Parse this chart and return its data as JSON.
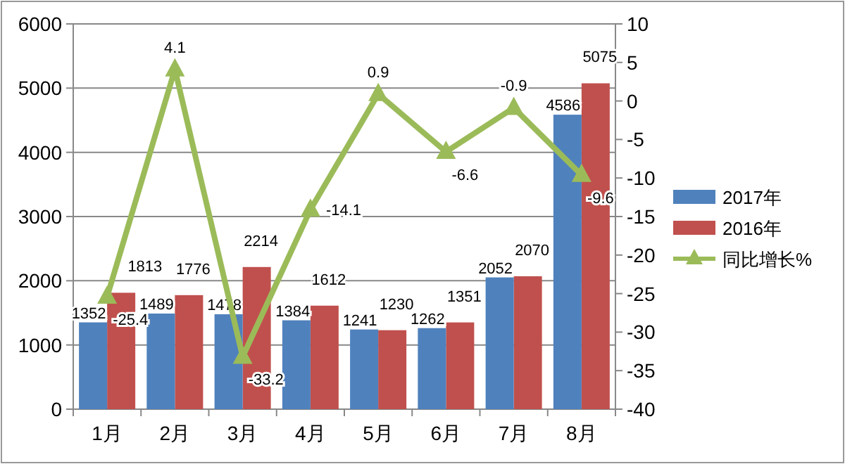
{
  "chart_data": {
    "type": "bar",
    "categories": [
      "1月",
      "2月",
      "3月",
      "4月",
      "5月",
      "6月",
      "7月",
      "8月"
    ],
    "series": [
      {
        "name": "2017年",
        "type": "bar",
        "color": "#4f81bd",
        "values": [
          1352,
          1489,
          1478,
          1384,
          1241,
          1262,
          2052,
          4586
        ]
      },
      {
        "name": "2016年",
        "type": "bar",
        "color": "#c0504d",
        "values": [
          1813,
          1776,
          2214,
          1612,
          1230,
          1351,
          2070,
          5075
        ]
      },
      {
        "name": "同比增长%",
        "type": "line",
        "axis": "y2",
        "color": "#9bbb59",
        "marker": "triangle",
        "values": [
          -25.4,
          4.1,
          -33.2,
          -14.1,
          0.9,
          -6.6,
          -0.9,
          -9.6
        ]
      }
    ],
    "ylim": [
      0,
      6000
    ],
    "yticks": [
      0,
      1000,
      2000,
      3000,
      4000,
      5000,
      6000
    ],
    "y2lim": [
      -40,
      10
    ],
    "y2ticks": [
      -40,
      -35,
      -30,
      -25,
      -20,
      -15,
      -10,
      -5,
      0,
      5,
      10
    ],
    "grid": "y",
    "legend": "right",
    "data_labels": true
  }
}
